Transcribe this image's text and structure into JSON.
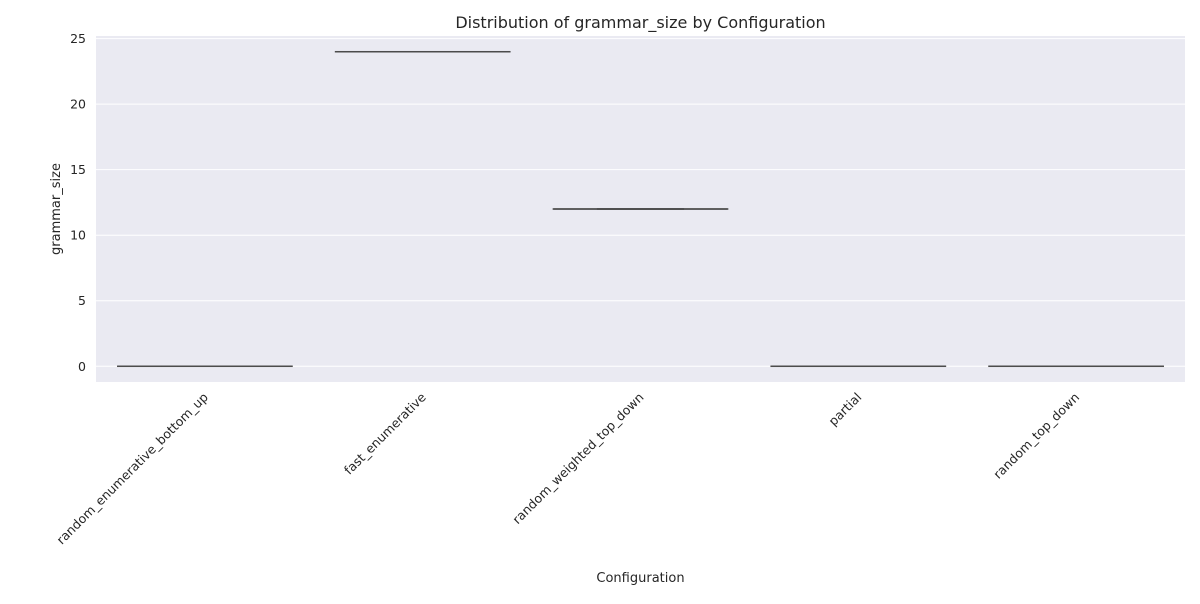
{
  "chart_data": {
    "type": "box",
    "title": "Distribution of grammar_size by Configuration",
    "xlabel": "Configuration",
    "ylabel": "grammar_size",
    "categories": [
      "random_enumerative_bottom_up",
      "fast_enumerative",
      "random_weighted_top_down",
      "partial",
      "random_top_down"
    ],
    "series": [
      {
        "values": [
          {
            "category": "random_enumerative_bottom_up",
            "min": 0,
            "q1": 0,
            "median": 0,
            "q3": 0,
            "max": 0
          },
          {
            "category": "fast_enumerative",
            "min": 24,
            "q1": 24,
            "median": 24,
            "q3": 24,
            "max": 24
          },
          {
            "category": "random_weighted_top_down",
            "min": 12,
            "q1": 12,
            "median": 12,
            "q3": 12,
            "max": 12
          },
          {
            "category": "partial",
            "min": 0,
            "q1": 0,
            "median": 0,
            "q3": 0,
            "max": 0
          },
          {
            "category": "random_top_down",
            "min": 0,
            "q1": 0,
            "median": 0,
            "q3": 0,
            "max": 0
          }
        ]
      }
    ],
    "yticks": [
      0,
      5,
      10,
      15,
      20,
      25
    ],
    "ylim": [
      -1.2,
      25.2
    ],
    "grid": true,
    "x_tick_rotation": "45 degrees",
    "colors": {
      "plot_background": "#eaeaf2",
      "grid": "#ffffff",
      "box_line": "#4c4c4c",
      "text": "#262626"
    }
  }
}
